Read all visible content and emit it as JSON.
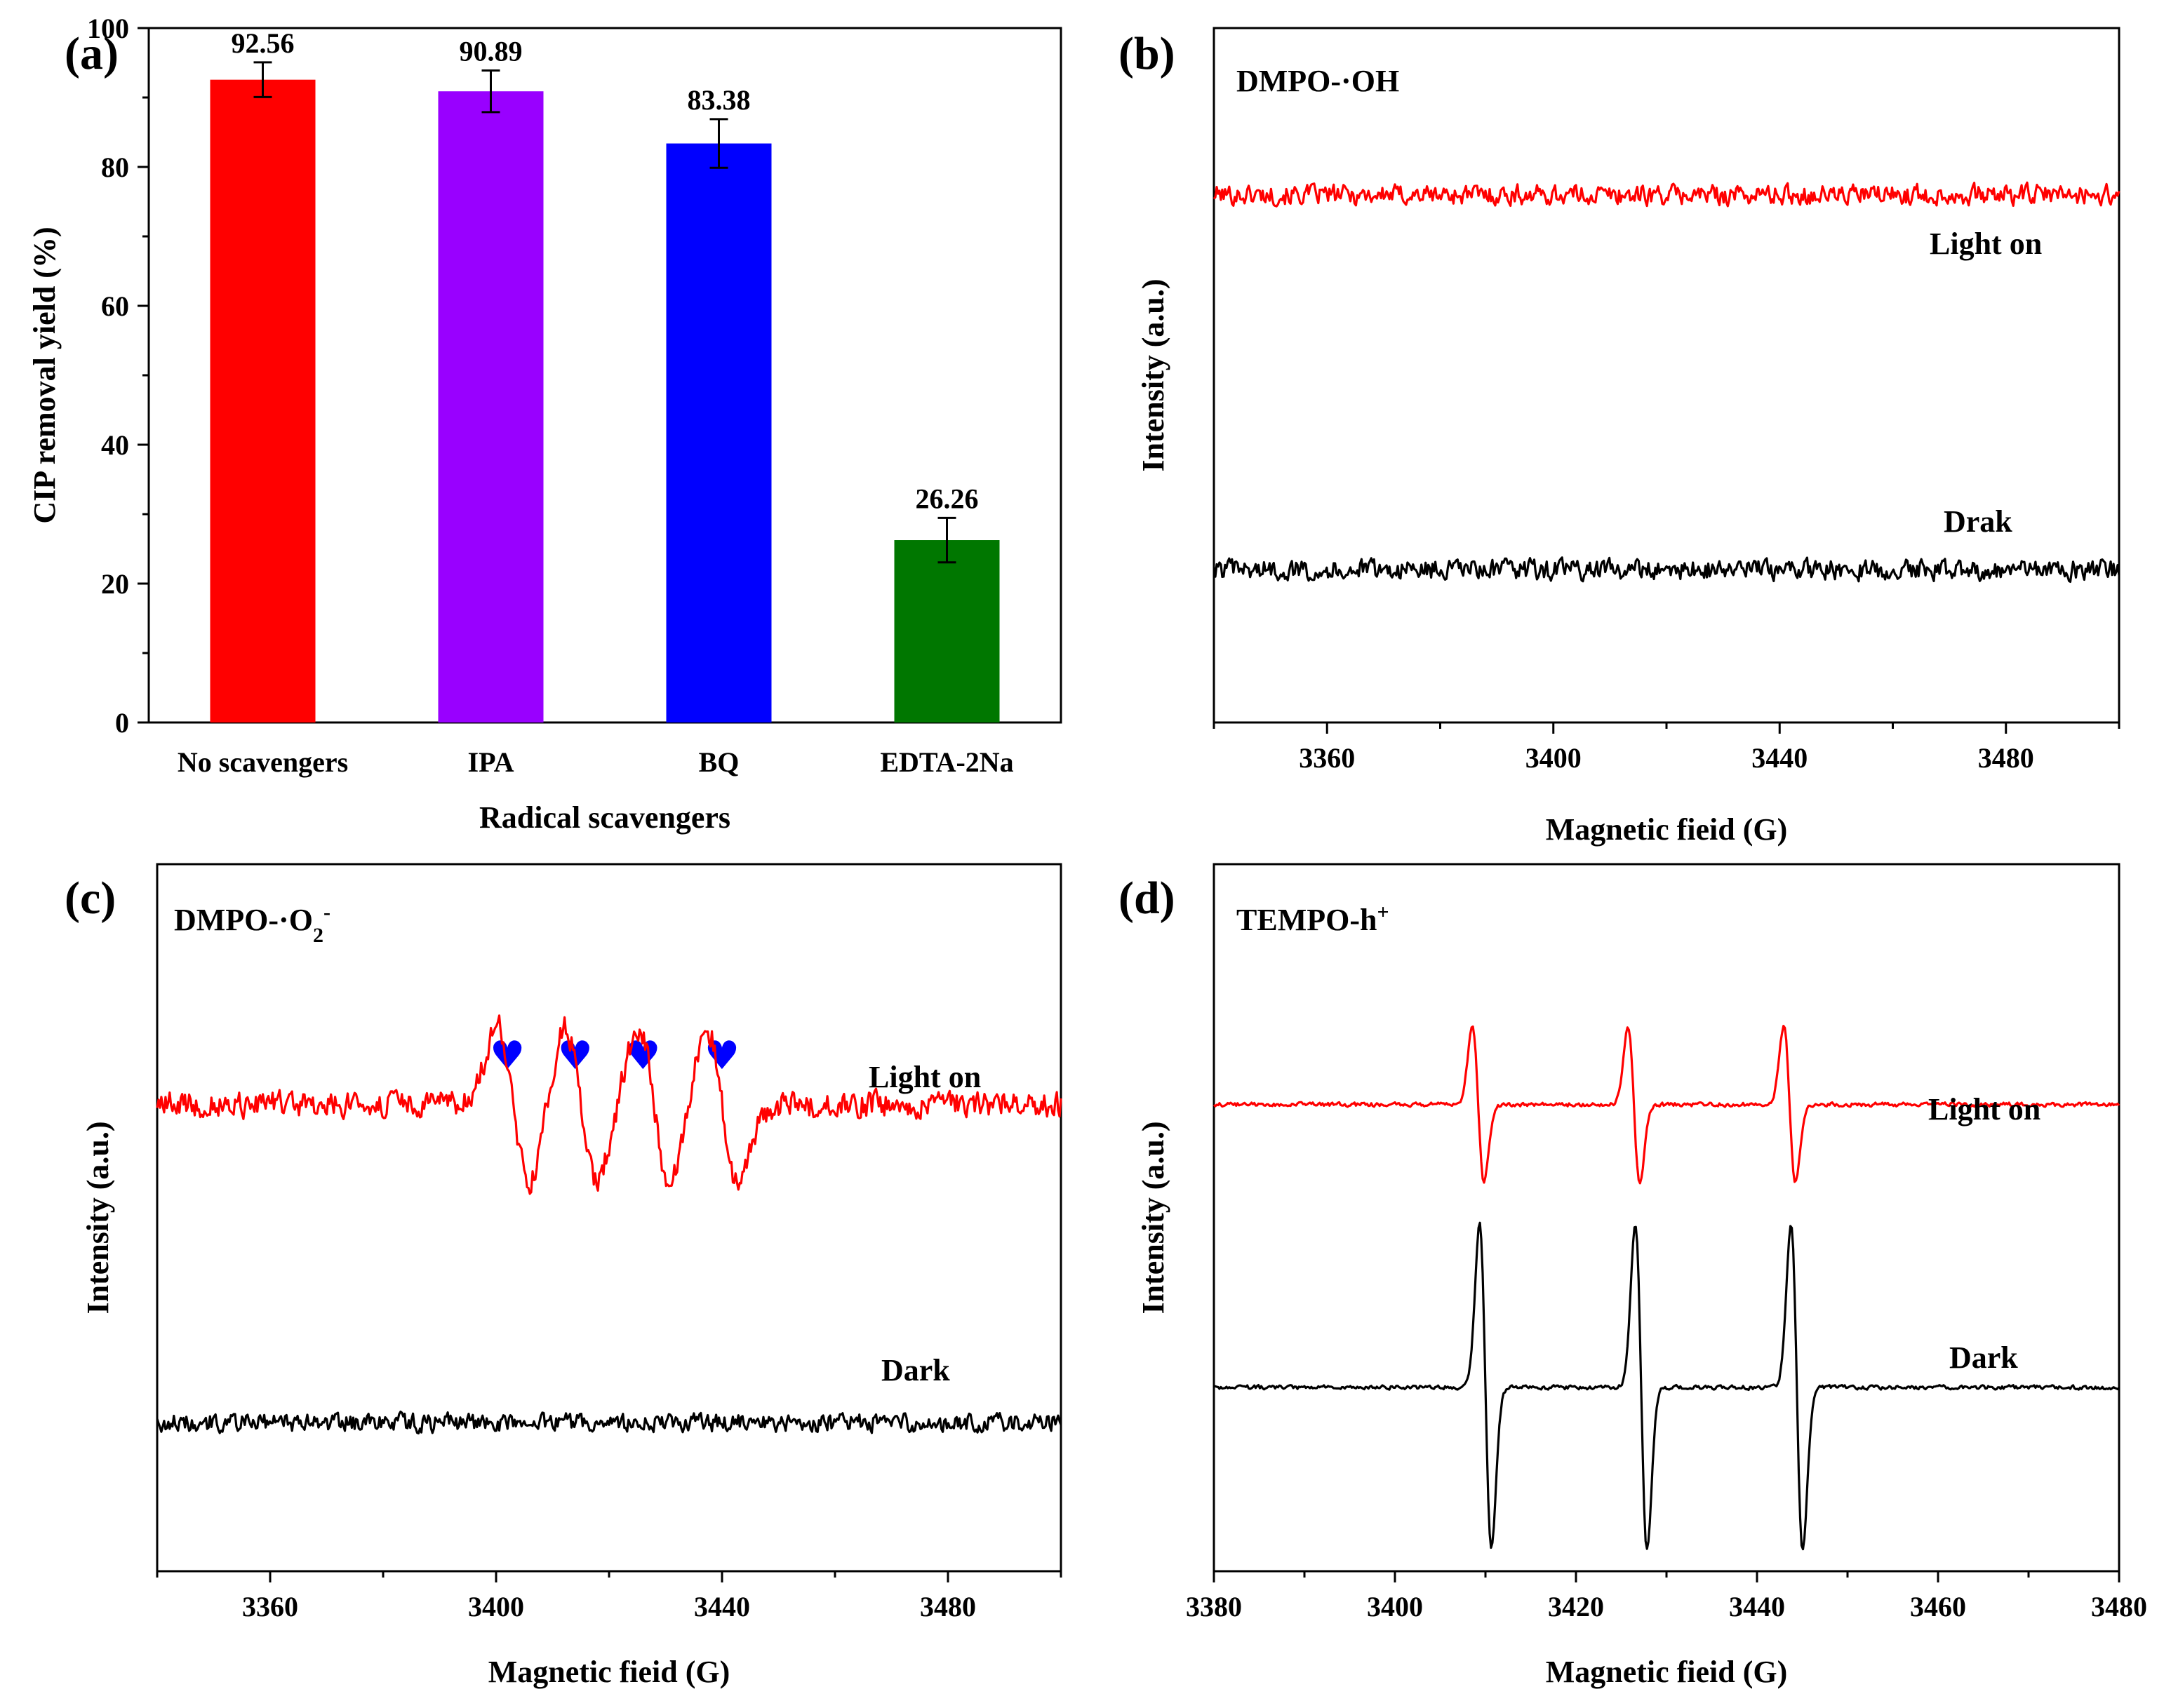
{
  "panel_labels": [
    "(a)",
    "(b)",
    "(c)",
    "(d)"
  ],
  "colors": {
    "red": "#ff0000",
    "purple": "#9900ff",
    "blue": "#0000ff",
    "green": "#007700",
    "black": "#000000",
    "heart": "#0000ff"
  },
  "chart_data": [
    {
      "id": "a",
      "type": "bar",
      "title": "",
      "categories": [
        "No scavengers",
        "IPA",
        "BQ",
        "EDTA-2Na"
      ],
      "values": [
        92.56,
        90.89,
        83.38,
        26.26
      ],
      "value_labels": [
        "92.56",
        "90.89",
        "83.38",
        "26.26"
      ],
      "errors": [
        2.5,
        3.0,
        3.5,
        3.2
      ],
      "bar_colors": [
        "#ff0000",
        "#9900ff",
        "#0000ff",
        "#007700"
      ],
      "xlabel": "Radical scavengers",
      "ylabel": "CIP removal yield (%)",
      "ylim": [
        0,
        100
      ],
      "yticks": [
        0,
        20,
        40,
        60,
        80,
        100
      ],
      "ytick_labels": [
        "0",
        "20",
        "40",
        "60",
        "80",
        "100"
      ]
    },
    {
      "id": "b",
      "type": "line",
      "annotation": "DMPO-·OH",
      "xlabel": "Magnetic fieid (G)",
      "ylabel": "Intensity (a.u.)",
      "xlim": [
        3340,
        3500
      ],
      "xticks": [
        3360,
        3400,
        3440,
        3480
      ],
      "xtick_labels": [
        "3360",
        "3400",
        "3440",
        "3480"
      ],
      "series": [
        {
          "name": "Light on",
          "color": "#ff0000",
          "shape": "noise",
          "baseline": 0.76,
          "amplitude": 0.02,
          "peaks": []
        },
        {
          "name": "Drak",
          "color": "#000000",
          "shape": "noise",
          "baseline": 0.22,
          "amplitude": 0.02,
          "peaks": []
        }
      ]
    },
    {
      "id": "c",
      "type": "line",
      "annotation_main": "DMPO-·O",
      "annotation_sub": "2",
      "annotation_sup": "-",
      "markers": {
        "symbol": "♥",
        "x": [
          3402,
          3414,
          3426,
          3440
        ],
        "name": "heart-marker"
      },
      "xlabel": "Magnetic fieid (G)",
      "ylabel": "Intensity (a.u.)",
      "xlim": [
        3340,
        3500
      ],
      "xticks": [
        3360,
        3400,
        3440,
        3480
      ],
      "xtick_labels": [
        "3360",
        "3400",
        "3440",
        "3480"
      ],
      "series": [
        {
          "name": "Light on",
          "color": "#ff0000",
          "shape": "epr",
          "baseline": 0.66,
          "amplitude": 0.025,
          "peaks": [
            3403,
            3415,
            3428,
            3440
          ],
          "peak_height": 0.11,
          "width": 2.8
        },
        {
          "name": "Dark",
          "color": "#000000",
          "shape": "noise",
          "baseline": 0.21,
          "amplitude": 0.018,
          "peaks": []
        }
      ]
    },
    {
      "id": "d",
      "type": "line",
      "annotation_main": "TEMPO-h",
      "annotation_sup": "+",
      "xlabel": "Magnetic fieid (G)",
      "ylabel": "Intensity (a.u.)",
      "xlim": [
        3380,
        3480
      ],
      "xticks": [
        3380,
        3400,
        3420,
        3440,
        3460,
        3480
      ],
      "xtick_labels": [
        "3380",
        "3400",
        "3420",
        "3440",
        "3460",
        "3480"
      ],
      "series": [
        {
          "name": "Light on",
          "color": "#ff0000",
          "shape": "epr",
          "baseline": 0.66,
          "amplitude": 0.004,
          "peaks": [
            3409.2,
            3426.4,
            3443.6
          ],
          "peak_height": 0.11,
          "width": 0.65
        },
        {
          "name": "Dark",
          "color": "#000000",
          "shape": "epr",
          "baseline": 0.26,
          "amplitude": 0.004,
          "peaks": [
            3410,
            3427.2,
            3444.4
          ],
          "peak_height": 0.23,
          "width": 0.65
        }
      ]
    }
  ]
}
